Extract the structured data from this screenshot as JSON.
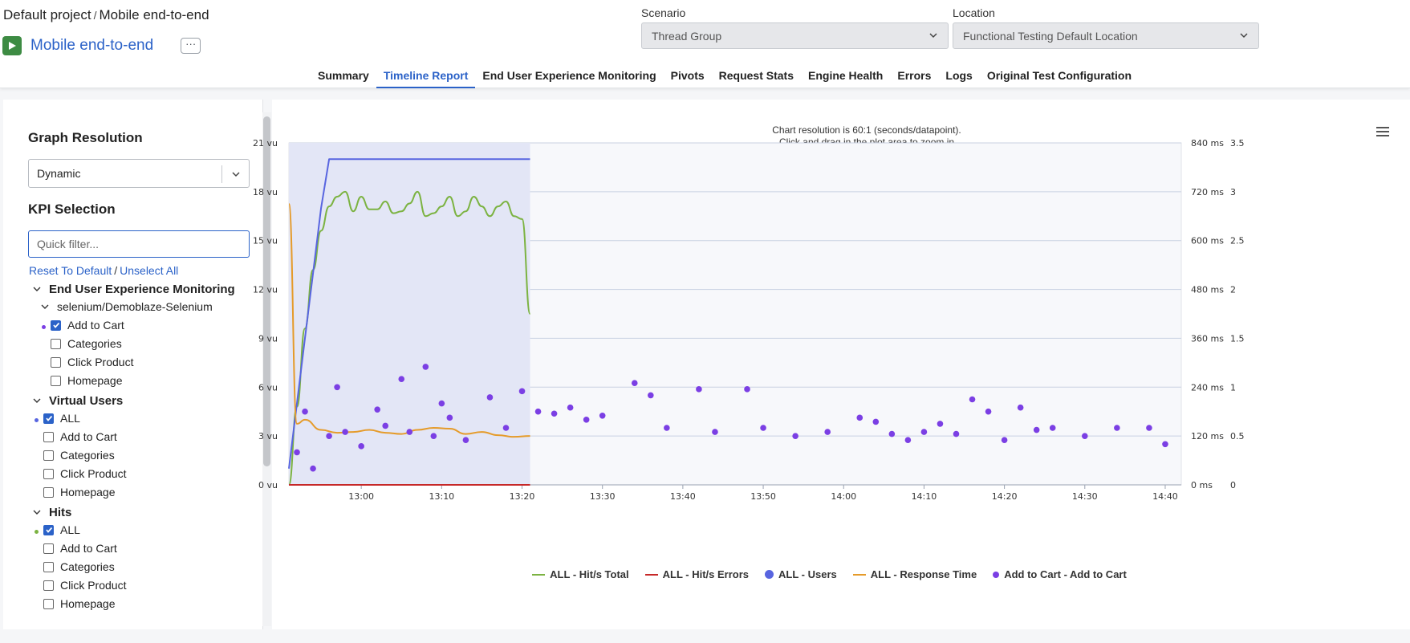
{
  "breadcrumb": {
    "project": "Default project",
    "separator": "/",
    "test": "Mobile end-to-end"
  },
  "test": {
    "name": "Mobile end-to-end",
    "more_label": "···",
    "play_color": "#3d8b43"
  },
  "scenario": {
    "label": "Scenario",
    "value": "Thread Group"
  },
  "location": {
    "label": "Location",
    "value": "Functional Testing Default Location"
  },
  "tabs": [
    {
      "label": "Summary",
      "active": false
    },
    {
      "label": "Timeline Report",
      "active": true
    },
    {
      "label": "End User Experience Monitoring",
      "active": false
    },
    {
      "label": "Pivots",
      "active": false
    },
    {
      "label": "Request Stats",
      "active": false
    },
    {
      "label": "Engine Health",
      "active": false
    },
    {
      "label": "Errors",
      "active": false
    },
    {
      "label": "Logs",
      "active": false
    },
    {
      "label": "Original Test Configuration",
      "active": false
    }
  ],
  "sidebar": {
    "graph_resolution_title": "Graph Resolution",
    "resolution_value": "Dynamic",
    "kpi_title": "KPI Selection",
    "filter_placeholder": "Quick filter...",
    "reset_label": "Reset To Default",
    "link_separator": "/",
    "unselect_label": "Unselect All",
    "groups": {
      "eue": {
        "label": "End User Experience Monitoring",
        "subgroup": "selenium/Demoblaze-Selenium",
        "items": [
          {
            "label": "Add to Cart",
            "checked": true
          },
          {
            "label": "Categories",
            "checked": false
          },
          {
            "label": "Click Product",
            "checked": false
          },
          {
            "label": "Homepage",
            "checked": false
          }
        ]
      },
      "vu": {
        "label": "Virtual Users",
        "items": [
          {
            "label": "ALL",
            "checked": true
          },
          {
            "label": "Add to Cart",
            "checked": false
          },
          {
            "label": "Categories",
            "checked": false
          },
          {
            "label": "Click Product",
            "checked": false
          },
          {
            "label": "Homepage",
            "checked": false
          }
        ]
      },
      "hits": {
        "label": "Hits",
        "items": [
          {
            "label": "ALL",
            "checked": true
          },
          {
            "label": "Add to Cart",
            "checked": false
          },
          {
            "label": "Categories",
            "checked": false
          },
          {
            "label": "Click Product",
            "checked": false
          },
          {
            "label": "Homepage",
            "checked": false
          }
        ]
      }
    }
  },
  "chart_note": {
    "line1": "Chart resolution is 60:1 (seconds/datapoint).",
    "line2": "Click and drag in the plot area to zoom in"
  },
  "chart_data": {
    "type": "line",
    "x_unit": "time (HH:MM)",
    "x_ticks": [
      "13:00",
      "13:10",
      "13:20",
      "13:30",
      "13:40",
      "13:50",
      "14:00",
      "14:10",
      "14:20",
      "14:30",
      "14:40"
    ],
    "x_range_minutes": [
      "12:51",
      "14:42"
    ],
    "y_left": {
      "ticks": [
        "0 vu",
        "3 vu",
        "6 vu",
        "9 vu",
        "12 vu",
        "15 vu",
        "18 vu",
        "21 vu"
      ],
      "range": [
        0,
        21
      ],
      "unit": "vu"
    },
    "y_right_ms": {
      "ticks": [
        "0 ms",
        "120 ms",
        "240 ms",
        "360 ms",
        "480 ms",
        "600 ms",
        "720 ms",
        "840 ms"
      ],
      "range": [
        0,
        840
      ],
      "unit": "ms"
    },
    "y_right_hits": {
      "ticks": [
        "0",
        "0.5",
        "1",
        "1.5",
        "2",
        "2.5",
        "3",
        "3.5"
      ],
      "range": [
        0,
        3.5
      ]
    },
    "highlight_band": {
      "from": "12:51",
      "to": "13:21"
    },
    "grid": true,
    "legend_position": "bottom",
    "series": [
      {
        "name": "ALL - Hit/s Total",
        "color": "#7cb342",
        "axis": "hits",
        "x": [
          "12:51",
          "12:52",
          "12:53",
          "12:54",
          "12:55",
          "12:56",
          "12:57",
          "12:58",
          "12:59",
          "13:00",
          "13:01",
          "13:02",
          "13:03",
          "13:04",
          "13:05",
          "13:06",
          "13:07",
          "13:08",
          "13:09",
          "13:10",
          "13:11",
          "13:12",
          "13:13",
          "13:14",
          "13:15",
          "13:16",
          "13:17",
          "13:18",
          "13:19",
          "13:20",
          "13:21"
        ],
        "values": [
          0,
          0.8,
          1.6,
          2.2,
          2.6,
          2.85,
          2.95,
          3.0,
          2.8,
          2.95,
          2.82,
          2.82,
          2.9,
          2.78,
          2.8,
          2.88,
          3.0,
          2.75,
          2.78,
          2.85,
          2.95,
          2.75,
          2.8,
          2.95,
          2.85,
          2.75,
          2.85,
          2.9,
          2.75,
          2.72,
          1.75
        ]
      },
      {
        "name": "ALL - Hit/s Errors",
        "color": "#c62828",
        "axis": "hits",
        "x": [
          "12:51",
          "13:21"
        ],
        "values": [
          0,
          0
        ]
      },
      {
        "name": "ALL - Users",
        "color": "#5865e0",
        "axis": "vu",
        "x": [
          "12:51",
          "12:52",
          "12:53",
          "12:54",
          "12:55",
          "12:56",
          "13:21"
        ],
        "values": [
          1,
          5,
          9,
          13,
          17,
          20,
          20
        ]
      },
      {
        "name": "ALL - Response Time",
        "color": "#e59b2a",
        "axis": "ms",
        "x": [
          "12:51",
          "12:52",
          "12:53",
          "12:55",
          "12:57",
          "12:59",
          "13:01",
          "13:03",
          "13:05",
          "13:07",
          "13:09",
          "13:11",
          "13:13",
          "13:15",
          "13:17",
          "13:19",
          "13:21"
        ],
        "values": [
          690,
          150,
          160,
          135,
          128,
          130,
          135,
          128,
          125,
          135,
          140,
          138,
          125,
          130,
          122,
          118,
          120
        ]
      },
      {
        "name": "Add to Cart - Add to Cart",
        "color": "#7b3fe4",
        "axis": "ms",
        "kind": "scatter",
        "x": [
          "12:52",
          "12:53",
          "12:54",
          "12:56",
          "12:57",
          "12:58",
          "13:00",
          "13:02",
          "13:03",
          "13:05",
          "13:06",
          "13:08",
          "13:09",
          "13:10",
          "13:11",
          "13:13",
          "13:16",
          "13:18",
          "13:20",
          "13:22",
          "13:24",
          "13:26",
          "13:28",
          "13:30",
          "13:34",
          "13:36",
          "13:38",
          "13:42",
          "13:44",
          "13:48",
          "13:50",
          "13:54",
          "13:58",
          "14:02",
          "14:04",
          "14:06",
          "14:08",
          "14:10",
          "14:12",
          "14:14",
          "14:16",
          "14:18",
          "14:20",
          "14:22",
          "14:24",
          "14:26",
          "14:30",
          "14:34",
          "14:38",
          "14:40"
        ],
        "values": [
          80,
          180,
          40,
          120,
          240,
          130,
          95,
          185,
          145,
          260,
          130,
          290,
          120,
          200,
          165,
          110,
          215,
          140,
          230,
          180,
          175,
          190,
          160,
          170,
          250,
          220,
          140,
          235,
          130,
          235,
          140,
          120,
          130,
          165,
          155,
          125,
          110,
          130,
          150,
          125,
          210,
          180,
          110,
          190,
          135,
          140,
          120,
          140,
          140,
          100
        ]
      }
    ]
  }
}
